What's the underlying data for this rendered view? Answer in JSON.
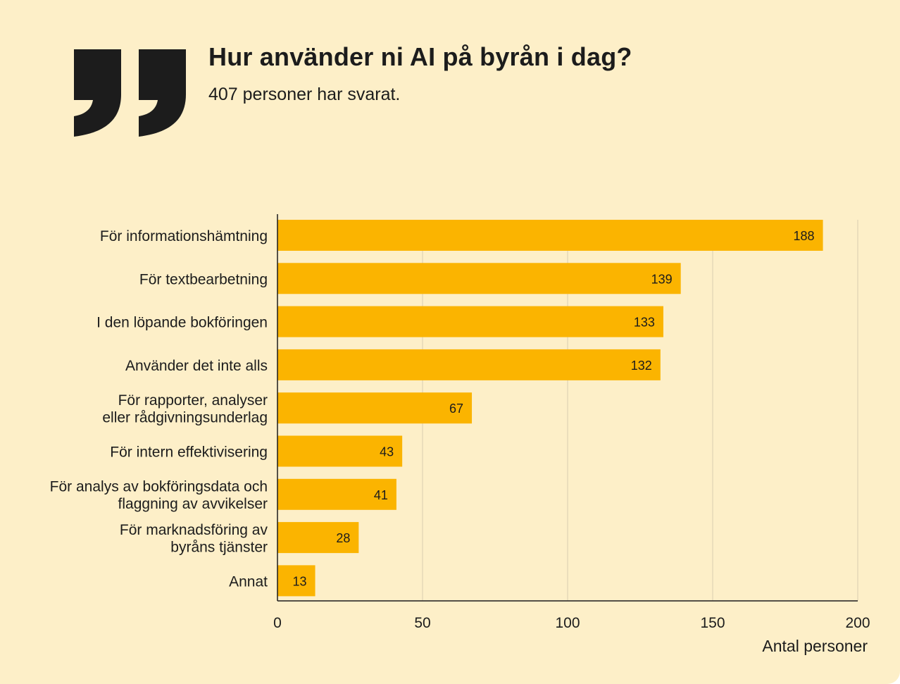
{
  "header": {
    "title": "Hur använder ni AI på byrån i dag?",
    "subtitle": "407 personer har svarat."
  },
  "colors": {
    "background": "#fdefc8",
    "bar": "#fbb400",
    "text": "#1c1c1c",
    "grid": "#d9ccb0"
  },
  "icons": [
    "closing-quote-icon"
  ],
  "chart_data": {
    "type": "bar",
    "orientation": "horizontal",
    "categories": [
      [
        "För informationshämtning"
      ],
      [
        "För textbearbetning"
      ],
      [
        "I den löpande bokföringen"
      ],
      [
        "Använder det inte alls"
      ],
      [
        "För rapporter, analyser",
        "eller rådgivningsunderlag"
      ],
      [
        "För intern effektivisering"
      ],
      [
        "För analys av bokföringsdata och",
        "flaggning av avvikelser"
      ],
      [
        "För marknadsföring av",
        "byråns tjänster"
      ],
      [
        "Annat"
      ]
    ],
    "values": [
      188,
      139,
      133,
      132,
      67,
      43,
      41,
      28,
      13
    ],
    "xlabel": "Antal personer",
    "ylabel": "",
    "xlim": [
      0,
      200
    ],
    "xticks": [
      0,
      50,
      100,
      150,
      200
    ],
    "grid": true,
    "data_labels": true
  }
}
